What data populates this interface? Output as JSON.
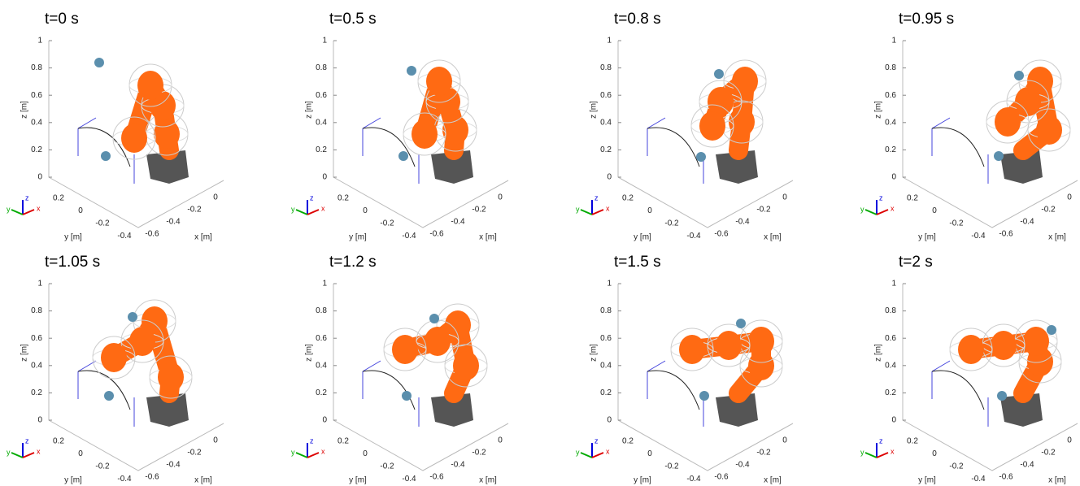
{
  "panels": [
    {
      "title": "t=0 s",
      "zlabel": "z [m]",
      "zticks": [
        "1",
        "0.8",
        "0.6",
        "0.4",
        "0.2",
        "0"
      ],
      "ylabel": "y [m]",
      "yticks": [
        "0.2",
        "0",
        "-0.2",
        "-0.4"
      ],
      "xlabel": "x [m]",
      "xticks": [
        "-0.6",
        "-0.4",
        "-0.2",
        "0"
      ],
      "triad": [
        "z",
        "y",
        "x"
      ]
    },
    {
      "title": "t=0.5 s",
      "zlabel": "z [m]",
      "zticks": [
        "1",
        "0.8",
        "0.6",
        "0.4",
        "0.2",
        "0"
      ],
      "ylabel": "y [m]",
      "yticks": [
        "0.2",
        "0",
        "-0.2",
        "-0.4"
      ],
      "xlabel": "x [m]",
      "xticks": [
        "-0.6",
        "-0.4",
        "-0.2",
        "0"
      ],
      "triad": [
        "z",
        "y",
        "x"
      ]
    },
    {
      "title": "t=0.8 s",
      "zlabel": "z [m]",
      "zticks": [
        "1",
        "0.8",
        "0.6",
        "0.4",
        "0.2",
        "0"
      ],
      "ylabel": "y [m]",
      "yticks": [
        "0.2",
        "0",
        "-0.2",
        "-0.4"
      ],
      "xlabel": "x [m]",
      "xticks": [
        "-0.6",
        "-0.4",
        "-0.2",
        "0"
      ],
      "triad": [
        "z",
        "y",
        "x"
      ]
    },
    {
      "title": "t=0.95 s",
      "zlabel": "z [m]",
      "zticks": [
        "1",
        "0.8",
        "0.6",
        "0.4",
        "0.2",
        "0"
      ],
      "ylabel": "y [m]",
      "yticks": [
        "0.2",
        "0",
        "-0.2",
        "-0.4"
      ],
      "xlabel": "x [m]",
      "xticks": [
        "-0.6",
        "-0.4",
        "-0.2",
        "0"
      ],
      "triad": [
        "z",
        "y",
        "x"
      ]
    },
    {
      "title": "t=1.05 s",
      "zlabel": "z [m]",
      "zticks": [
        "1",
        "0.8",
        "0.6",
        "0.4",
        "0.2",
        "0"
      ],
      "ylabel": "y [m]",
      "yticks": [
        "0.2",
        "0",
        "-0.2",
        "-0.4"
      ],
      "xlabel": "x [m]",
      "xticks": [
        "-0.6",
        "-0.4",
        "-0.2",
        "0"
      ],
      "triad": [
        "z",
        "y",
        "x"
      ]
    },
    {
      "title": "t=1.2 s",
      "zlabel": "z [m]",
      "zticks": [
        "1",
        "0.8",
        "0.6",
        "0.4",
        "0.2",
        "0"
      ],
      "ylabel": "y [m]",
      "yticks": [
        "0.2",
        "0",
        "-0.2",
        "-0.4"
      ],
      "xlabel": "x [m]",
      "xticks": [
        "-0.6",
        "-0.4",
        "-0.2",
        "0"
      ],
      "triad": [
        "z",
        "y",
        "x"
      ]
    },
    {
      "title": "t=1.5 s",
      "zlabel": "z [m]",
      "zticks": [
        "1",
        "0.8",
        "0.6",
        "0.4",
        "0.2",
        "0"
      ],
      "ylabel": "y [m]",
      "yticks": [
        "0.2",
        "0",
        "-0.2",
        "-0.4"
      ],
      "xlabel": "x [m]",
      "xticks": [
        "-0.6",
        "-0.4",
        "-0.2",
        "0"
      ],
      "triad": [
        "z",
        "y",
        "x"
      ]
    },
    {
      "title": "t=2 s",
      "zlabel": "z [m]",
      "zticks": [
        "1",
        "0.8",
        "0.6",
        "0.4",
        "0.2",
        "0"
      ],
      "ylabel": "y [m]",
      "yticks": [
        "0.2",
        "0",
        "-0.2",
        "-0.4"
      ],
      "xlabel": "x [m]",
      "xticks": [
        "-0.6",
        "-0.4",
        "-0.2",
        "0"
      ],
      "triad": [
        "z",
        "y",
        "x"
      ]
    }
  ]
}
